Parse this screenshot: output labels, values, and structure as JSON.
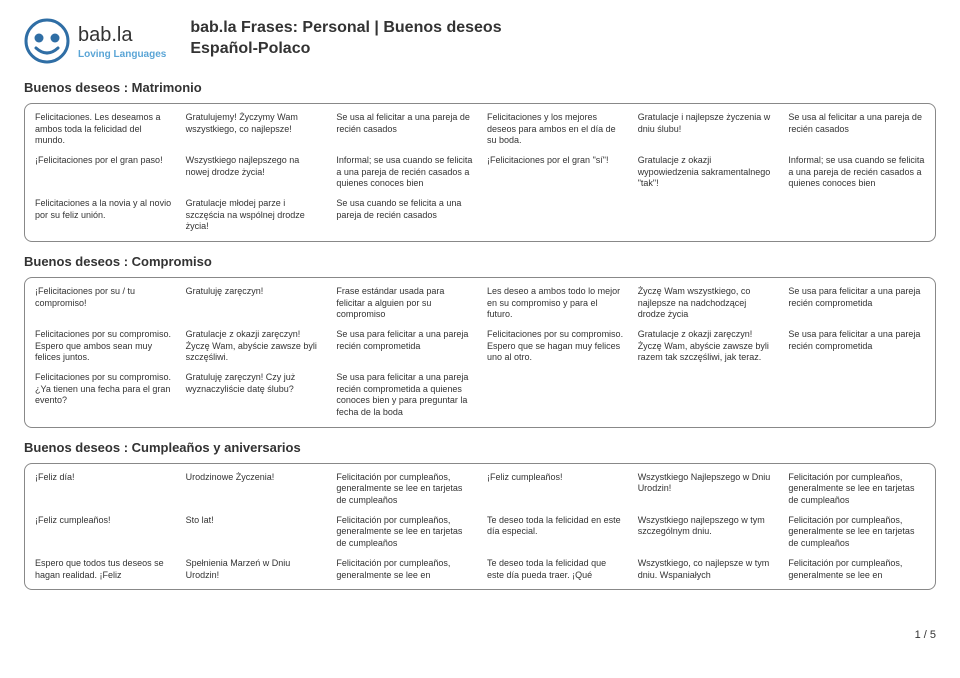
{
  "logo": {
    "name": "bab.la",
    "sub": "Loving Languages"
  },
  "title1": "bab.la Frases: Personal | Buenos deseos",
  "title2": "Español-Polaco",
  "footer": "1 / 5",
  "sections": [
    {
      "title": "Buenos deseos : Matrimonio",
      "rows": [
        [
          "Felicitaciones. Les deseamos a ambos toda la felicidad del mundo.",
          "Gratulujemy! Życzymy Wam wszystkiego, co najlepsze!",
          "Se usa al felicitar a una pareja de recién casados",
          "Felicitaciones y los mejores deseos para ambos en el día de su boda.",
          "Gratulacje i najlepsze życzenia w dniu ślubu!",
          "Se usa al felicitar a una pareja de recién casados"
        ],
        [
          "¡Felicitaciones por el gran paso!",
          "Wszystkiego najlepszego na nowej drodze życia!",
          "Informal; se usa cuando se felicita a una pareja de recién casados a quienes conoces bien",
          "¡Felicitaciones por el gran \"sí\"!",
          "Gratulacje z okazji wypowiedzenia sakramentalnego \"tak\"!",
          "Informal; se usa cuando se felicita a una pareja de recién casados a quienes conoces bien"
        ],
        [
          "Felicitaciones a la novia y al novio por su feliz unión.",
          "Gratulacje młodej parze i szczęścia na wspólnej drodze życia!",
          "Se usa cuando se felicita a una pareja de recién casados",
          "",
          "",
          ""
        ]
      ]
    },
    {
      "title": "Buenos deseos : Compromiso",
      "rows": [
        [
          "¡Felicitaciones por su / tu compromiso!",
          "Gratuluję zaręczyn!",
          "Frase estándar usada para felicitar a alguien por su compromiso",
          "Les deseo a ambos todo lo mejor en su compromiso y para el futuro.",
          "Życzę Wam wszystkiego, co najlepsze na nadchodzącej drodze życia",
          "Se usa para felicitar a una pareja recién comprometida"
        ],
        [
          "Felicitaciones por su compromiso. Espero que ambos sean muy felices juntos.",
          "Gratulacje z okazji zaręczyn! Życzę Wam, abyście zawsze byli szczęśliwi.",
          "Se usa para felicitar a una pareja recién comprometida",
          "Felicitaciones por su compromiso. Espero que se hagan muy felices uno al otro.",
          "Gratulacje z okazji zaręczyn! Życzę Wam, abyście zawsze byli razem tak szczęśliwi, jak teraz.",
          "Se usa para felicitar a una pareja recién comprometida"
        ],
        [
          "Felicitaciones por su compromiso. ¿Ya tienen una fecha para el gran evento?",
          "Gratuluję zaręczyn! Czy już wyznaczyliście datę ślubu?",
          "Se usa para felicitar a una pareja recién comprometida a quienes conoces bien y para preguntar la fecha de la boda",
          "",
          "",
          ""
        ]
      ]
    },
    {
      "title": "Buenos deseos : Cumpleaños y aniversarios",
      "rows": [
        [
          "¡Feliz día!",
          "Urodzinowe Życzenia!",
          "Felicitación por cumpleaños, generalmente se lee en tarjetas de cumpleaños",
          "¡Feliz cumpleaños!",
          "Wszystkiego Najlepszego w Dniu Urodzin!",
          "Felicitación por cumpleaños, generalmente se lee en tarjetas de cumpleaños"
        ],
        [
          "¡Feliz cumpleaños!",
          "Sto lat!",
          "Felicitación por cumpleaños, generalmente se lee en tarjetas de cumpleaños",
          "Te deseo toda la felicidad en este día especial.",
          "Wszystkiego najlepszego w tym szczególnym dniu.",
          "Felicitación por cumpleaños, generalmente se lee en tarjetas de cumpleaños"
        ],
        [
          "Espero que todos tus deseos se hagan realidad. ¡Feliz",
          "Spełnienia Marzeń w Dniu Urodzin!",
          "Felicitación por cumpleaños, generalmente se lee en",
          "Te deseo toda la felicidad que este día pueda traer. ¡Qué",
          "Wszystkiego, co najlepsze w tym dniu. Wspaniałych",
          "Felicitación por cumpleaños, generalmente se lee en"
        ]
      ]
    }
  ]
}
